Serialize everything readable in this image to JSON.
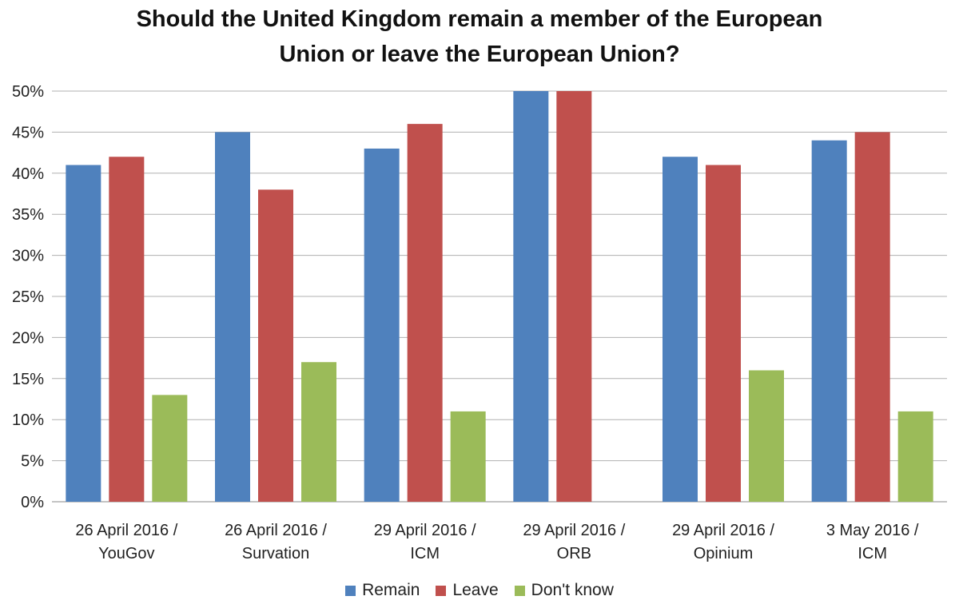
{
  "chart_data": {
    "type": "bar",
    "title_line1": "Should the United Kingdom remain a member of the European",
    "title_line2": "Union or leave the European Union?",
    "categories": [
      [
        "26 April 2016 /",
        "YouGov"
      ],
      [
        "26 April 2016 /",
        "Survation"
      ],
      [
        "29 April 2016 /",
        "ICM"
      ],
      [
        "29 April 2016 /",
        "ORB"
      ],
      [
        "29 April 2016 /",
        "Opinium"
      ],
      [
        "3 May 2016 /",
        "ICM"
      ]
    ],
    "series": [
      {
        "name": "Remain",
        "color": "#4F81BD",
        "values": [
          41,
          45,
          43,
          50,
          42,
          44
        ]
      },
      {
        "name": "Leave",
        "color": "#C0504D",
        "values": [
          42,
          38,
          46,
          50,
          41,
          45
        ]
      },
      {
        "name": "Don't know",
        "color": "#9BBB59",
        "values": [
          13,
          17,
          11,
          null,
          16,
          11
        ]
      }
    ],
    "ylim": [
      0,
      50
    ],
    "yticks": [
      "0%",
      "5%",
      "10%",
      "15%",
      "20%",
      "25%",
      "30%",
      "35%",
      "40%",
      "45%",
      "50%"
    ],
    "grid": true,
    "legend_position": "bottom"
  }
}
